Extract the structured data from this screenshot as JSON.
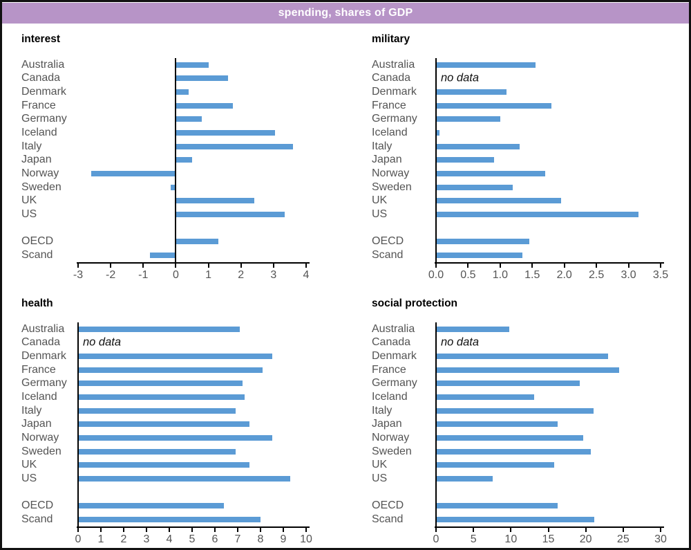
{
  "header": {
    "title": "spending, shares of GDP",
    "bg_color": "#b794c7",
    "text_color": "#ffffff"
  },
  "colors": {
    "bar": "#5b9bd5",
    "axis": "#000000",
    "label": "#545454",
    "panel_title": "#000000"
  },
  "no_data_label": "no data",
  "categories": [
    "Australia",
    "Canada",
    "Denmark",
    "France",
    "Germany",
    "Iceland",
    "Italy",
    "Japan",
    "Norway",
    "Sweden",
    "UK",
    "US",
    "OECD",
    "Scand"
  ],
  "group_break_after": "US",
  "chart_data": [
    {
      "type": "bar",
      "orientation": "horizontal",
      "title": "interest",
      "xlim": [
        -3,
        4
      ],
      "tick_values": [
        -3,
        -2,
        -1,
        0,
        1,
        2,
        3,
        4
      ],
      "tick_labels": [
        "-3",
        "-2",
        "-1",
        "0",
        "1",
        "2",
        "3",
        "4"
      ],
      "values": [
        1.0,
        1.6,
        0.4,
        1.75,
        0.8,
        3.05,
        3.6,
        0.5,
        -2.6,
        -0.15,
        2.4,
        3.35,
        1.3,
        -0.8
      ]
    },
    {
      "type": "bar",
      "orientation": "horizontal",
      "title": "military",
      "xlim": [
        0,
        3.5
      ],
      "tick_values": [
        0,
        0.5,
        1.0,
        1.5,
        2.0,
        2.5,
        3.0,
        3.5
      ],
      "tick_labels": [
        "0.0",
        "0.5",
        "1.0",
        "1.5",
        "2.0",
        "2.5",
        "3.0",
        "3.5"
      ],
      "values": [
        1.55,
        null,
        1.1,
        1.8,
        1.0,
        0.05,
        1.3,
        0.9,
        1.7,
        1.2,
        1.95,
        3.15,
        1.45,
        1.35
      ]
    },
    {
      "type": "bar",
      "orientation": "horizontal",
      "title": "health",
      "xlim": [
        0,
        10
      ],
      "tick_values": [
        0,
        1,
        2,
        3,
        4,
        5,
        6,
        7,
        8,
        9,
        10
      ],
      "tick_labels": [
        "0",
        "1",
        "2",
        "3",
        "4",
        "5",
        "6",
        "7",
        "8",
        "9",
        "10"
      ],
      "values": [
        7.1,
        null,
        8.5,
        8.1,
        7.2,
        7.3,
        6.9,
        7.5,
        8.5,
        6.9,
        7.5,
        9.3,
        6.4,
        8.0
      ]
    },
    {
      "type": "bar",
      "orientation": "horizontal",
      "title": "social protection",
      "xlim": [
        0,
        30
      ],
      "tick_values": [
        0,
        5,
        10,
        15,
        20,
        25,
        30
      ],
      "tick_labels": [
        "0",
        "5",
        "10",
        "15",
        "20",
        "25",
        "30"
      ],
      "values": [
        9.8,
        null,
        23.0,
        24.5,
        19.2,
        13.1,
        21.0,
        16.2,
        19.7,
        20.7,
        15.8,
        7.6,
        16.2,
        21.1
      ]
    }
  ]
}
